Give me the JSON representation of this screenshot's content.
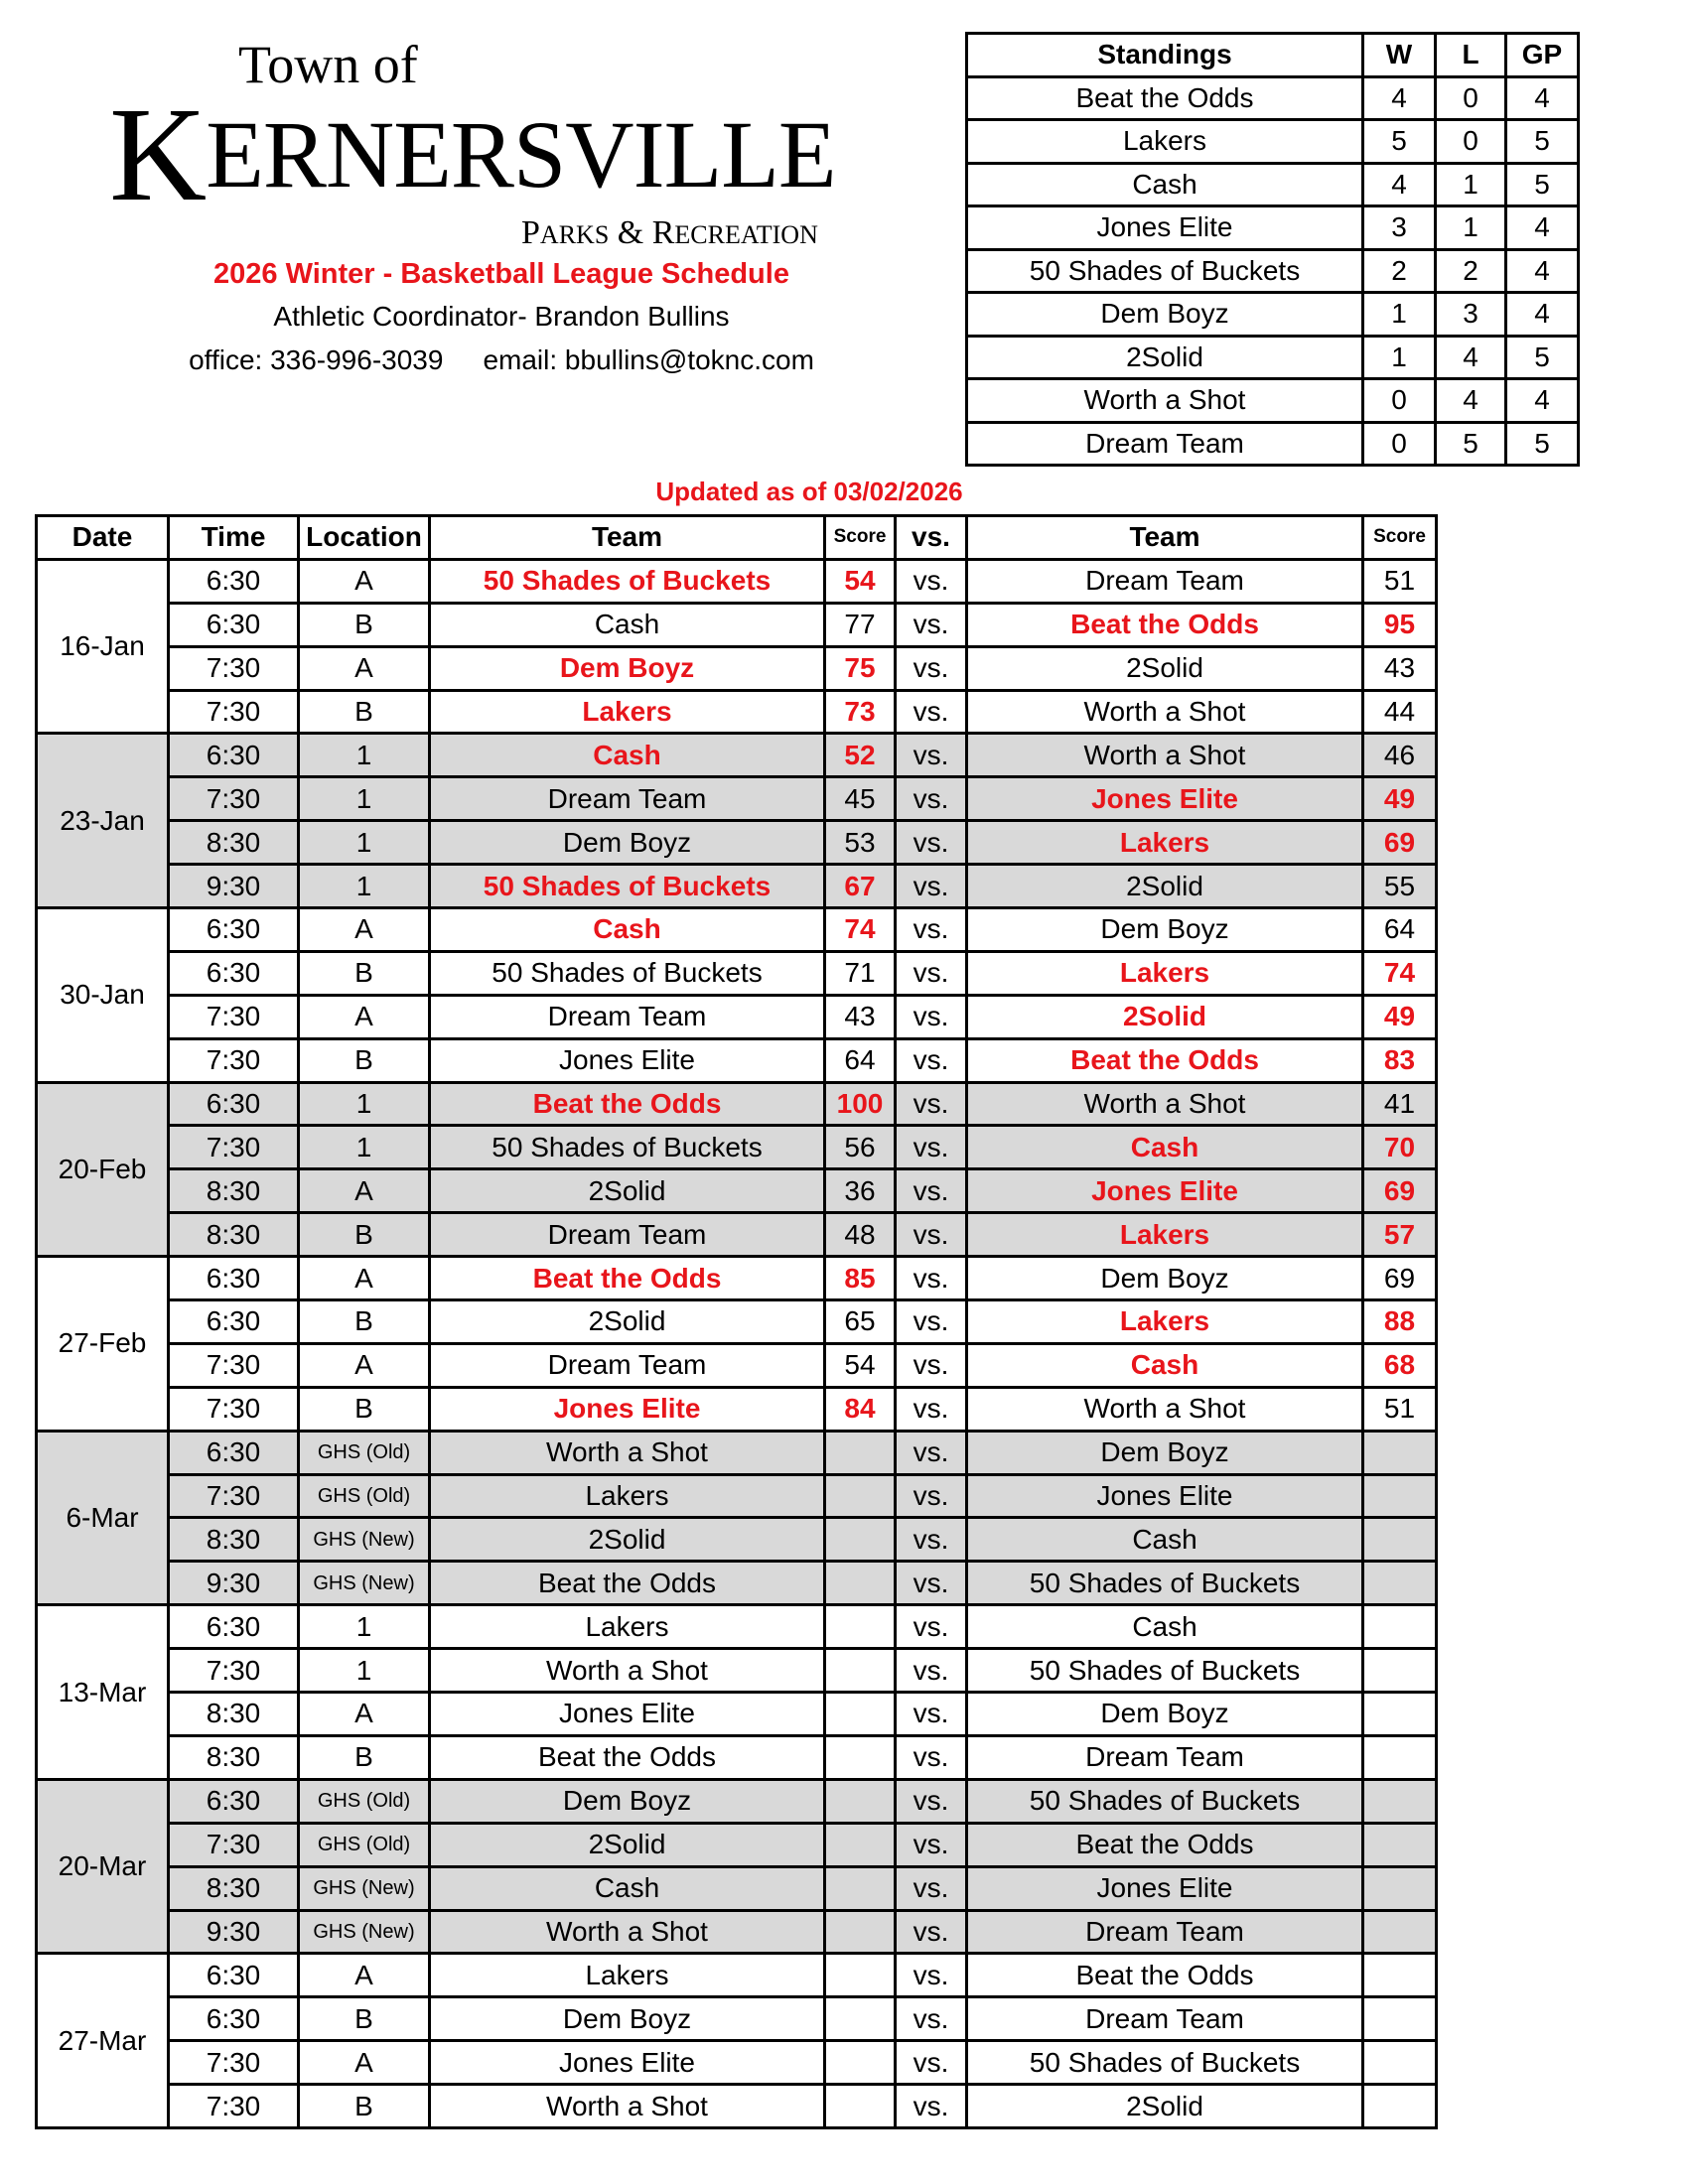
{
  "header": {
    "logo": {
      "town_of": "Town of",
      "kernersville": "Kernersville",
      "parks_recreation": "Parks & Recreation"
    },
    "title": "2026 Winter - Basketball League Schedule",
    "coordinator": "Athletic Coordinator- Brandon Bullins",
    "office": "office: 336-996-3039",
    "email": "email: bbullins@toknc.com",
    "updated": "Updated as of 03/02/2026"
  },
  "colors": {
    "winner": "#e8151b",
    "shaded_row": "#d9d9d9"
  },
  "standings": {
    "headers": [
      "Standings",
      "W",
      "L",
      "GP"
    ],
    "rows": [
      [
        "Beat the Odds",
        "4",
        "0",
        "4"
      ],
      [
        "Lakers",
        "5",
        "0",
        "5"
      ],
      [
        "Cash",
        "4",
        "1",
        "5"
      ],
      [
        "Jones Elite",
        "3",
        "1",
        "4"
      ],
      [
        "50 Shades of Buckets",
        "2",
        "2",
        "4"
      ],
      [
        "Dem Boyz",
        "1",
        "3",
        "4"
      ],
      [
        "2Solid",
        "1",
        "4",
        "5"
      ],
      [
        "Worth a Shot",
        "0",
        "4",
        "4"
      ],
      [
        "Dream Team",
        "0",
        "5",
        "5"
      ]
    ]
  },
  "schedule": {
    "headers": [
      "Date",
      "Time",
      "Location",
      "Team",
      "Score",
      "vs.",
      "Team",
      "Score"
    ],
    "vs_label": "vs.",
    "dates": [
      {
        "date": "16-Jan",
        "shaded": false,
        "games": [
          {
            "time": "6:30",
            "location": "A",
            "team1": "50 Shades of Buckets",
            "score1": "54",
            "team2": "Dream Team",
            "score2": "51",
            "winner": 1
          },
          {
            "time": "6:30",
            "location": "B",
            "team1": "Cash",
            "score1": "77",
            "team2": "Beat the Odds",
            "score2": "95",
            "winner": 2
          },
          {
            "time": "7:30",
            "location": "A",
            "team1": "Dem Boyz",
            "score1": "75",
            "team2": "2Solid",
            "score2": "43",
            "winner": 1
          },
          {
            "time": "7:30",
            "location": "B",
            "team1": "Lakers",
            "score1": "73",
            "team2": "Worth a Shot",
            "score2": "44",
            "winner": 1
          }
        ]
      },
      {
        "date": "23-Jan",
        "shaded": true,
        "games": [
          {
            "time": "6:30",
            "location": "1",
            "team1": "Cash",
            "score1": "52",
            "team2": "Worth a Shot",
            "score2": "46",
            "winner": 1
          },
          {
            "time": "7:30",
            "location": "1",
            "team1": "Dream Team",
            "score1": "45",
            "team2": "Jones Elite",
            "score2": "49",
            "winner": 2
          },
          {
            "time": "8:30",
            "location": "1",
            "team1": "Dem Boyz",
            "score1": "53",
            "team2": "Lakers",
            "score2": "69",
            "winner": 2
          },
          {
            "time": "9:30",
            "location": "1",
            "team1": "50 Shades of Buckets",
            "score1": "67",
            "team2": "2Solid",
            "score2": "55",
            "winner": 1
          }
        ]
      },
      {
        "date": "30-Jan",
        "shaded": false,
        "games": [
          {
            "time": "6:30",
            "location": "A",
            "team1": "Cash",
            "score1": "74",
            "team2": "Dem Boyz",
            "score2": "64",
            "winner": 1
          },
          {
            "time": "6:30",
            "location": "B",
            "team1": "50 Shades of Buckets",
            "score1": "71",
            "team2": "Lakers",
            "score2": "74",
            "winner": 2
          },
          {
            "time": "7:30",
            "location": "A",
            "team1": "Dream Team",
            "score1": "43",
            "team2": "2Solid",
            "score2": "49",
            "winner": 2
          },
          {
            "time": "7:30",
            "location": "B",
            "team1": "Jones Elite",
            "score1": "64",
            "team2": "Beat the Odds",
            "score2": "83",
            "winner": 2
          }
        ]
      },
      {
        "date": "20-Feb",
        "shaded": true,
        "games": [
          {
            "time": "6:30",
            "location": "1",
            "team1": "Beat the Odds",
            "score1": "100",
            "team2": "Worth a Shot",
            "score2": "41",
            "winner": 1
          },
          {
            "time": "7:30",
            "location": "1",
            "team1": "50 Shades of Buckets",
            "score1": "56",
            "team2": "Cash",
            "score2": "70",
            "winner": 2
          },
          {
            "time": "8:30",
            "location": "A",
            "team1": "2Solid",
            "score1": "36",
            "team2": "Jones Elite",
            "score2": "69",
            "winner": 2
          },
          {
            "time": "8:30",
            "location": "B",
            "team1": "Dream Team",
            "score1": "48",
            "team2": "Lakers",
            "score2": "57",
            "winner": 2
          }
        ]
      },
      {
        "date": "27-Feb",
        "shaded": false,
        "games": [
          {
            "time": "6:30",
            "location": "A",
            "team1": "Beat the Odds",
            "score1": "85",
            "team2": "Dem Boyz",
            "score2": "69",
            "winner": 1
          },
          {
            "time": "6:30",
            "location": "B",
            "team1": "2Solid",
            "score1": "65",
            "team2": "Lakers",
            "score2": "88",
            "winner": 2
          },
          {
            "time": "7:30",
            "location": "A",
            "team1": "Dream Team",
            "score1": "54",
            "team2": "Cash",
            "score2": "68",
            "winner": 2
          },
          {
            "time": "7:30",
            "location": "B",
            "team1": "Jones Elite",
            "score1": "84",
            "team2": "Worth a Shot",
            "score2": "51",
            "winner": 1
          }
        ]
      },
      {
        "date": "6-Mar",
        "shaded": true,
        "games": [
          {
            "time": "6:30",
            "location": "GHS (Old)",
            "team1": "Worth a Shot",
            "score1": "",
            "team2": "Dem Boyz",
            "score2": ""
          },
          {
            "time": "7:30",
            "location": "GHS (Old)",
            "team1": "Lakers",
            "score1": "",
            "team2": "Jones Elite",
            "score2": ""
          },
          {
            "time": "8:30",
            "location": "GHS (New)",
            "team1": "2Solid",
            "score1": "",
            "team2": "Cash",
            "score2": ""
          },
          {
            "time": "9:30",
            "location": "GHS (New)",
            "team1": "Beat the Odds",
            "score1": "",
            "team2": "50 Shades of Buckets",
            "score2": ""
          }
        ]
      },
      {
        "date": "13-Mar",
        "shaded": false,
        "games": [
          {
            "time": "6:30",
            "location": "1",
            "team1": "Lakers",
            "score1": "",
            "team2": "Cash",
            "score2": ""
          },
          {
            "time": "7:30",
            "location": "1",
            "team1": "Worth a Shot",
            "score1": "",
            "team2": "50 Shades of Buckets",
            "score2": ""
          },
          {
            "time": "8:30",
            "location": "A",
            "team1": "Jones Elite",
            "score1": "",
            "team2": "Dem Boyz",
            "score2": ""
          },
          {
            "time": "8:30",
            "location": "B",
            "team1": "Beat the Odds",
            "score1": "",
            "team2": "Dream Team",
            "score2": ""
          }
        ]
      },
      {
        "date": "20-Mar",
        "shaded": true,
        "games": [
          {
            "time": "6:30",
            "location": "GHS (Old)",
            "team1": "Dem Boyz",
            "score1": "",
            "team2": "50 Shades of Buckets",
            "score2": ""
          },
          {
            "time": "7:30",
            "location": "GHS (Old)",
            "team1": "2Solid",
            "score1": "",
            "team2": "Beat the Odds",
            "score2": ""
          },
          {
            "time": "8:30",
            "location": "GHS (New)",
            "team1": "Cash",
            "score1": "",
            "team2": "Jones Elite",
            "score2": ""
          },
          {
            "time": "9:30",
            "location": "GHS (New)",
            "team1": "Worth a Shot",
            "score1": "",
            "team2": "Dream Team",
            "score2": ""
          }
        ]
      },
      {
        "date": "27-Mar",
        "shaded": false,
        "games": [
          {
            "time": "6:30",
            "location": "A",
            "team1": "Lakers",
            "score1": "",
            "team2": "Beat the Odds",
            "score2": ""
          },
          {
            "time": "6:30",
            "location": "B",
            "team1": "Dem Boyz",
            "score1": "",
            "team2": "Dream Team",
            "score2": ""
          },
          {
            "time": "7:30",
            "location": "A",
            "team1": "Jones Elite",
            "score1": "",
            "team2": "50 Shades of Buckets",
            "score2": ""
          },
          {
            "time": "7:30",
            "location": "B",
            "team1": "Worth a Shot",
            "score1": "",
            "team2": "2Solid",
            "score2": ""
          }
        ]
      }
    ]
  }
}
